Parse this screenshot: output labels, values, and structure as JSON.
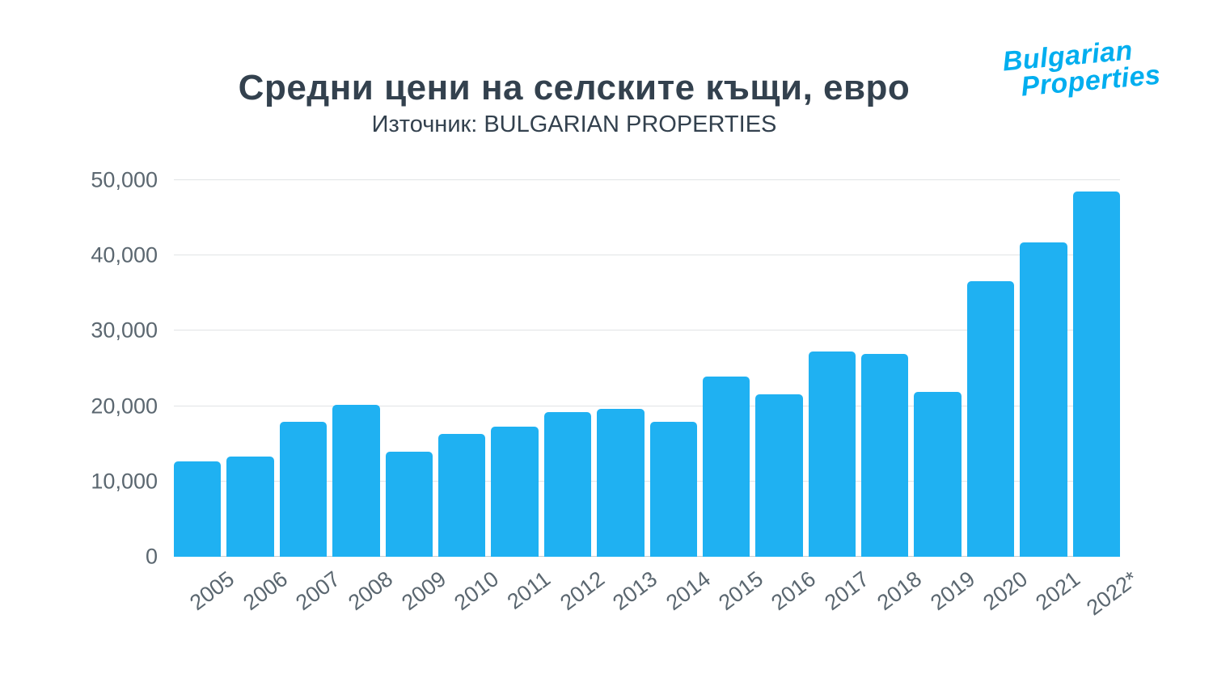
{
  "header": {
    "title": "Средни цени на селските къщи, евро",
    "subtitle": "Източник: BULGARIAN PROPERTIES"
  },
  "logo": {
    "line1": "Bulgarian",
    "line2": "Properties",
    "color": "#00AEEF"
  },
  "chart_data": {
    "type": "bar",
    "title": "Средни цени на селските къщи, евро",
    "subtitle": "Източник: BULGARIAN PROPERTIES",
    "categories": [
      "2005",
      "2006",
      "2007",
      "2008",
      "2009",
      "2010",
      "2011",
      "2012",
      "2013",
      "2014",
      "2015",
      "2016",
      "2017",
      "2018",
      "2019",
      "2020",
      "2021",
      "2022*"
    ],
    "values": [
      12700,
      13300,
      17900,
      20200,
      13900,
      16300,
      17300,
      19200,
      19600,
      17900,
      23900,
      21600,
      27300,
      26900,
      21900,
      36600,
      41700,
      48500
    ],
    "bar_color": "#1FB1F2",
    "ylim": [
      0,
      50000
    ],
    "yticks": [
      0,
      10000,
      20000,
      30000,
      40000,
      50000
    ],
    "ytick_labels": [
      "0",
      "10,000",
      "20,000",
      "30,000",
      "40,000",
      "50,000"
    ],
    "xlabel": "",
    "ylabel": "",
    "grid": true,
    "legend": false
  }
}
